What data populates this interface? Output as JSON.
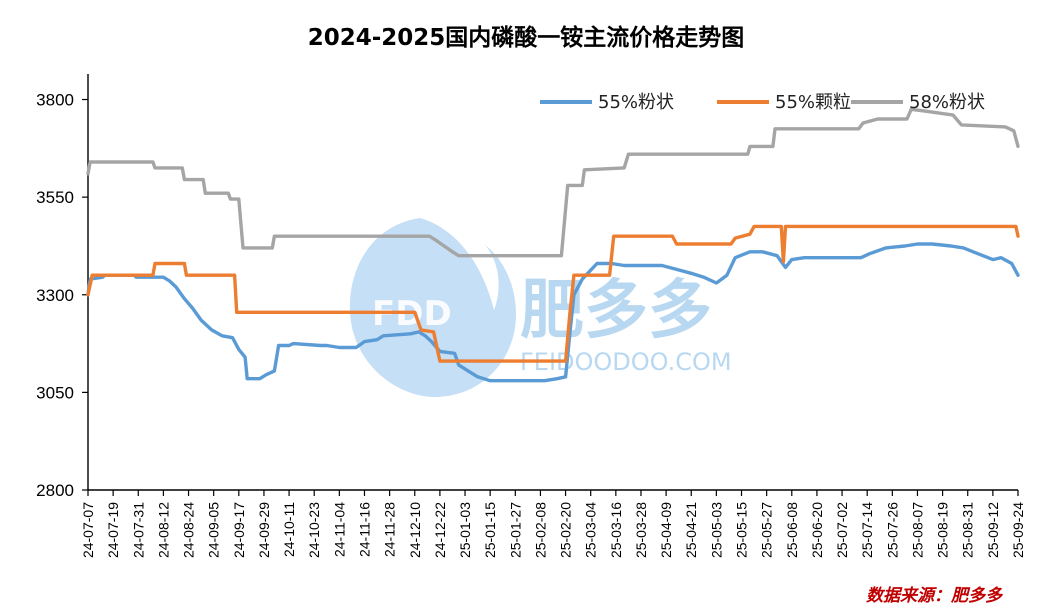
{
  "chart_data": {
    "type": "line",
    "title": "2024-2025国内磷酸一铵主流价格走势图",
    "xlabel": "",
    "ylabel": "",
    "ylim": [
      2800,
      3850
    ],
    "yticks": [
      2800,
      3050,
      3300,
      3550,
      3800
    ],
    "x_start": "2024-07-07",
    "x_end": "2025-09-24",
    "xticks": [
      "24-07-07",
      "24-07-19",
      "24-07-31",
      "24-08-12",
      "24-08-24",
      "24-09-05",
      "24-09-17",
      "24-09-29",
      "24-10-11",
      "24-10-23",
      "24-11-04",
      "24-11-16",
      "24-11-28",
      "24-12-10",
      "24-12-22",
      "25-01-03",
      "25-01-15",
      "25-01-27",
      "25-02-08",
      "25-02-20",
      "25-03-04",
      "25-03-16",
      "25-03-28",
      "25-04-09",
      "25-04-21",
      "25-05-03",
      "25-05-15",
      "25-05-27",
      "25-06-08",
      "25-06-20",
      "25-07-02",
      "25-07-14",
      "25-07-26",
      "25-08-07",
      "25-08-19",
      "25-08-31",
      "25-09-12",
      "25-09-24"
    ],
    "legend_position": "top-right",
    "grid": false,
    "series": [
      {
        "name": "55%粉状",
        "color": "#5b9bd5",
        "points": [
          [
            "2024-07-07",
            3300
          ],
          [
            "2024-07-08",
            3340
          ],
          [
            "2024-07-14",
            3345
          ],
          [
            "2024-07-15",
            3350
          ],
          [
            "2024-07-29",
            3350
          ],
          [
            "2024-07-30",
            3345
          ],
          [
            "2024-08-12",
            3345
          ],
          [
            "2024-08-15",
            3335
          ],
          [
            "2024-08-18",
            3320
          ],
          [
            "2024-08-22",
            3290
          ],
          [
            "2024-08-26",
            3265
          ],
          [
            "2024-08-30",
            3235
          ],
          [
            "2024-09-04",
            3210
          ],
          [
            "2024-09-09",
            3195
          ],
          [
            "2024-09-14",
            3190
          ],
          [
            "2024-09-17",
            3160
          ],
          [
            "2024-09-20",
            3140
          ],
          [
            "2024-09-21",
            3085
          ],
          [
            "2024-09-27",
            3085
          ],
          [
            "2024-09-30",
            3095
          ],
          [
            "2024-10-04",
            3105
          ],
          [
            "2024-10-06",
            3170
          ],
          [
            "2024-10-11",
            3170
          ],
          [
            "2024-10-13",
            3175
          ],
          [
            "2024-10-26",
            3170
          ],
          [
            "2024-10-29",
            3170
          ],
          [
            "2024-11-04",
            3165
          ],
          [
            "2024-11-12",
            3165
          ],
          [
            "2024-11-16",
            3180
          ],
          [
            "2024-11-22",
            3185
          ],
          [
            "2024-11-25",
            3195
          ],
          [
            "2024-12-08",
            3200
          ],
          [
            "2024-12-12",
            3205
          ],
          [
            "2024-12-15",
            3195
          ],
          [
            "2024-12-18",
            3180
          ],
          [
            "2024-12-22",
            3155
          ],
          [
            "2024-12-29",
            3150
          ],
          [
            "2024-12-31",
            3120
          ],
          [
            "2025-01-06",
            3100
          ],
          [
            "2025-01-09",
            3090
          ],
          [
            "2025-01-15",
            3080
          ],
          [
            "2025-02-10",
            3080
          ],
          [
            "2025-02-16",
            3085
          ],
          [
            "2025-02-20",
            3090
          ],
          [
            "2025-02-22",
            3200
          ],
          [
            "2025-02-24",
            3300
          ],
          [
            "2025-02-28",
            3340
          ],
          [
            "2025-03-07",
            3380
          ],
          [
            "2025-03-14",
            3380
          ],
          [
            "2025-03-20",
            3375
          ],
          [
            "2025-04-07",
            3375
          ],
          [
            "2025-04-14",
            3365
          ],
          [
            "2025-04-21",
            3355
          ],
          [
            "2025-04-27",
            3345
          ],
          [
            "2025-05-03",
            3330
          ],
          [
            "2025-05-08",
            3350
          ],
          [
            "2025-05-12",
            3395
          ],
          [
            "2025-05-19",
            3410
          ],
          [
            "2025-05-25",
            3410
          ],
          [
            "2025-06-01",
            3400
          ],
          [
            "2025-06-05",
            3370
          ],
          [
            "2025-06-08",
            3390
          ],
          [
            "2025-06-14",
            3395
          ],
          [
            "2025-06-20",
            3395
          ],
          [
            "2025-07-11",
            3395
          ],
          [
            "2025-07-15",
            3405
          ],
          [
            "2025-07-23",
            3420
          ],
          [
            "2025-08-01",
            3425
          ],
          [
            "2025-08-07",
            3430
          ],
          [
            "2025-08-14",
            3430
          ],
          [
            "2025-08-23",
            3425
          ],
          [
            "2025-08-29",
            3420
          ],
          [
            "2025-09-05",
            3405
          ],
          [
            "2025-09-12",
            3390
          ],
          [
            "2025-09-16",
            3395
          ],
          [
            "2025-09-21",
            3380
          ],
          [
            "2025-09-24",
            3350
          ]
        ]
      },
      {
        "name": "55%颗粒",
        "color": "#ed7d31",
        "points": [
          [
            "2024-07-07",
            3300
          ],
          [
            "2024-07-09",
            3350
          ],
          [
            "2024-08-07",
            3350
          ],
          [
            "2024-08-08",
            3380
          ],
          [
            "2024-08-22",
            3380
          ],
          [
            "2024-08-23",
            3350
          ],
          [
            "2024-09-15",
            3350
          ],
          [
            "2024-09-16",
            3255
          ],
          [
            "2024-12-10",
            3255
          ],
          [
            "2024-12-13",
            3210
          ],
          [
            "2024-12-19",
            3205
          ],
          [
            "2024-12-22",
            3130
          ],
          [
            "2025-02-20",
            3130
          ],
          [
            "2025-02-22",
            3250
          ],
          [
            "2025-02-24",
            3350
          ],
          [
            "2025-03-13",
            3350
          ],
          [
            "2025-03-15",
            3450
          ],
          [
            "2025-04-12",
            3450
          ],
          [
            "2025-04-14",
            3430
          ],
          [
            "2025-05-10",
            3430
          ],
          [
            "2025-05-12",
            3445
          ],
          [
            "2025-05-19",
            3455
          ],
          [
            "2025-05-21",
            3475
          ],
          [
            "2025-06-03",
            3475
          ],
          [
            "2025-06-04",
            3385
          ],
          [
            "2025-06-05",
            3475
          ],
          [
            "2025-09-23",
            3475
          ],
          [
            "2025-09-24",
            3450
          ]
        ]
      },
      {
        "name": "58%粉状",
        "color": "#a5a5a5",
        "points": [
          [
            "2024-07-07",
            3610
          ],
          [
            "2024-07-08",
            3640
          ],
          [
            "2024-08-07",
            3640
          ],
          [
            "2024-08-08",
            3625
          ],
          [
            "2024-08-21",
            3625
          ],
          [
            "2024-08-22",
            3595
          ],
          [
            "2024-08-31",
            3595
          ],
          [
            "2024-09-01",
            3560
          ],
          [
            "2024-09-12",
            3560
          ],
          [
            "2024-09-13",
            3545
          ],
          [
            "2024-09-17",
            3545
          ],
          [
            "2024-09-19",
            3420
          ],
          [
            "2024-10-03",
            3420
          ],
          [
            "2024-10-04",
            3450
          ],
          [
            "2024-12-17",
            3450
          ],
          [
            "2024-12-20",
            3440
          ],
          [
            "2024-12-28",
            3410
          ],
          [
            "2024-12-31",
            3400
          ],
          [
            "2025-02-18",
            3400
          ],
          [
            "2025-02-21",
            3580
          ],
          [
            "2025-02-28",
            3580
          ],
          [
            "2025-03-01",
            3620
          ],
          [
            "2025-03-20",
            3625
          ],
          [
            "2025-03-22",
            3660
          ],
          [
            "2025-05-18",
            3660
          ],
          [
            "2025-05-19",
            3680
          ],
          [
            "2025-05-30",
            3680
          ],
          [
            "2025-05-31",
            3725
          ],
          [
            "2025-07-10",
            3725
          ],
          [
            "2025-07-12",
            3740
          ],
          [
            "2025-07-19",
            3750
          ],
          [
            "2025-08-02",
            3750
          ],
          [
            "2025-08-04",
            3775
          ],
          [
            "2025-08-11",
            3770
          ],
          [
            "2025-08-24",
            3760
          ],
          [
            "2025-08-28",
            3735
          ],
          [
            "2025-09-18",
            3730
          ],
          [
            "2025-09-22",
            3720
          ],
          [
            "2025-09-24",
            3680
          ]
        ]
      }
    ]
  },
  "watermark": {
    "logo": "FDD",
    "name": "肥多多",
    "site": "FEIDOODOO.COM"
  },
  "source_label": "数据来源：肥多多"
}
